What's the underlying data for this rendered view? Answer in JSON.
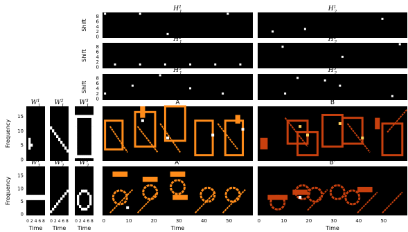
{
  "chart_data": {
    "type": "heatmap",
    "ylabel_shift": "Shift",
    "ylabel_frequency": "Frequency",
    "xlabel_time": "Time",
    "h_panels": [
      {
        "title": "H",
        "sup": "1",
        "sub": "1",
        "points": [
          [
            1,
            9
          ],
          [
            15,
            9
          ],
          [
            26,
            1
          ],
          [
            50,
            9
          ]
        ]
      },
      {
        "title": "H",
        "sup": "1",
        "sub": "2",
        "points": [
          [
            6,
            2
          ],
          [
            19,
            3
          ],
          [
            50,
            7
          ]
        ]
      },
      {
        "title": "H",
        "sup": "2",
        "sub": "1",
        "points": [
          [
            5,
            1
          ],
          [
            15,
            1
          ],
          [
            25,
            1
          ],
          [
            35,
            1
          ],
          [
            45,
            1
          ],
          [
            55,
            1
          ]
        ]
      },
      {
        "title": "H",
        "sup": "2",
        "sub": "2",
        "points": [
          [
            10,
            8
          ],
          [
            34,
            4
          ],
          [
            57,
            9
          ]
        ]
      },
      {
        "title": "H",
        "sup": "3",
        "sub": "1",
        "points": [
          [
            1,
            2
          ],
          [
            12,
            5
          ],
          [
            23,
            9
          ],
          [
            35,
            4
          ],
          [
            48,
            2
          ]
        ]
      },
      {
        "title": "H",
        "sup": "3",
        "sub": "2",
        "points": [
          [
            11,
            2
          ],
          [
            16,
            8
          ],
          [
            27,
            7
          ],
          [
            33,
            5
          ],
          [
            54,
            1
          ]
        ]
      }
    ],
    "h_yticks": [
      "0",
      "2",
      "4",
      "6",
      "8"
    ],
    "w_panels": [
      {
        "title": "W",
        "sup": "1",
        "sub": "1"
      },
      {
        "title": "W",
        "sup": "2",
        "sub": "1"
      },
      {
        "title": "W",
        "sup": "3",
        "sub": "1"
      },
      {
        "title": "W",
        "sup": "1",
        "sub": "2"
      },
      {
        "title": "W",
        "sup": "2",
        "sub": "2"
      },
      {
        "title": "W",
        "sup": "3",
        "sub": "2"
      }
    ],
    "w_xticks": "0 2 4 6 8",
    "freq_yticks": [
      "0",
      "5",
      "10",
      "15"
    ],
    "big_panels": [
      {
        "title": "A",
        "color": "#ff8c1a"
      },
      {
        "title": "B",
        "color": "#c8400e"
      },
      {
        "title": "A'",
        "color": "#ff8c1a"
      },
      {
        "title": "B'",
        "color": "#c8400e"
      }
    ],
    "time_xticks": [
      "0",
      "10",
      "20",
      "30",
      "40",
      "50"
    ],
    "xlim": [
      0,
      60
    ],
    "shift_range": [
      0,
      9
    ],
    "freq_range": [
      0,
      19
    ]
  }
}
